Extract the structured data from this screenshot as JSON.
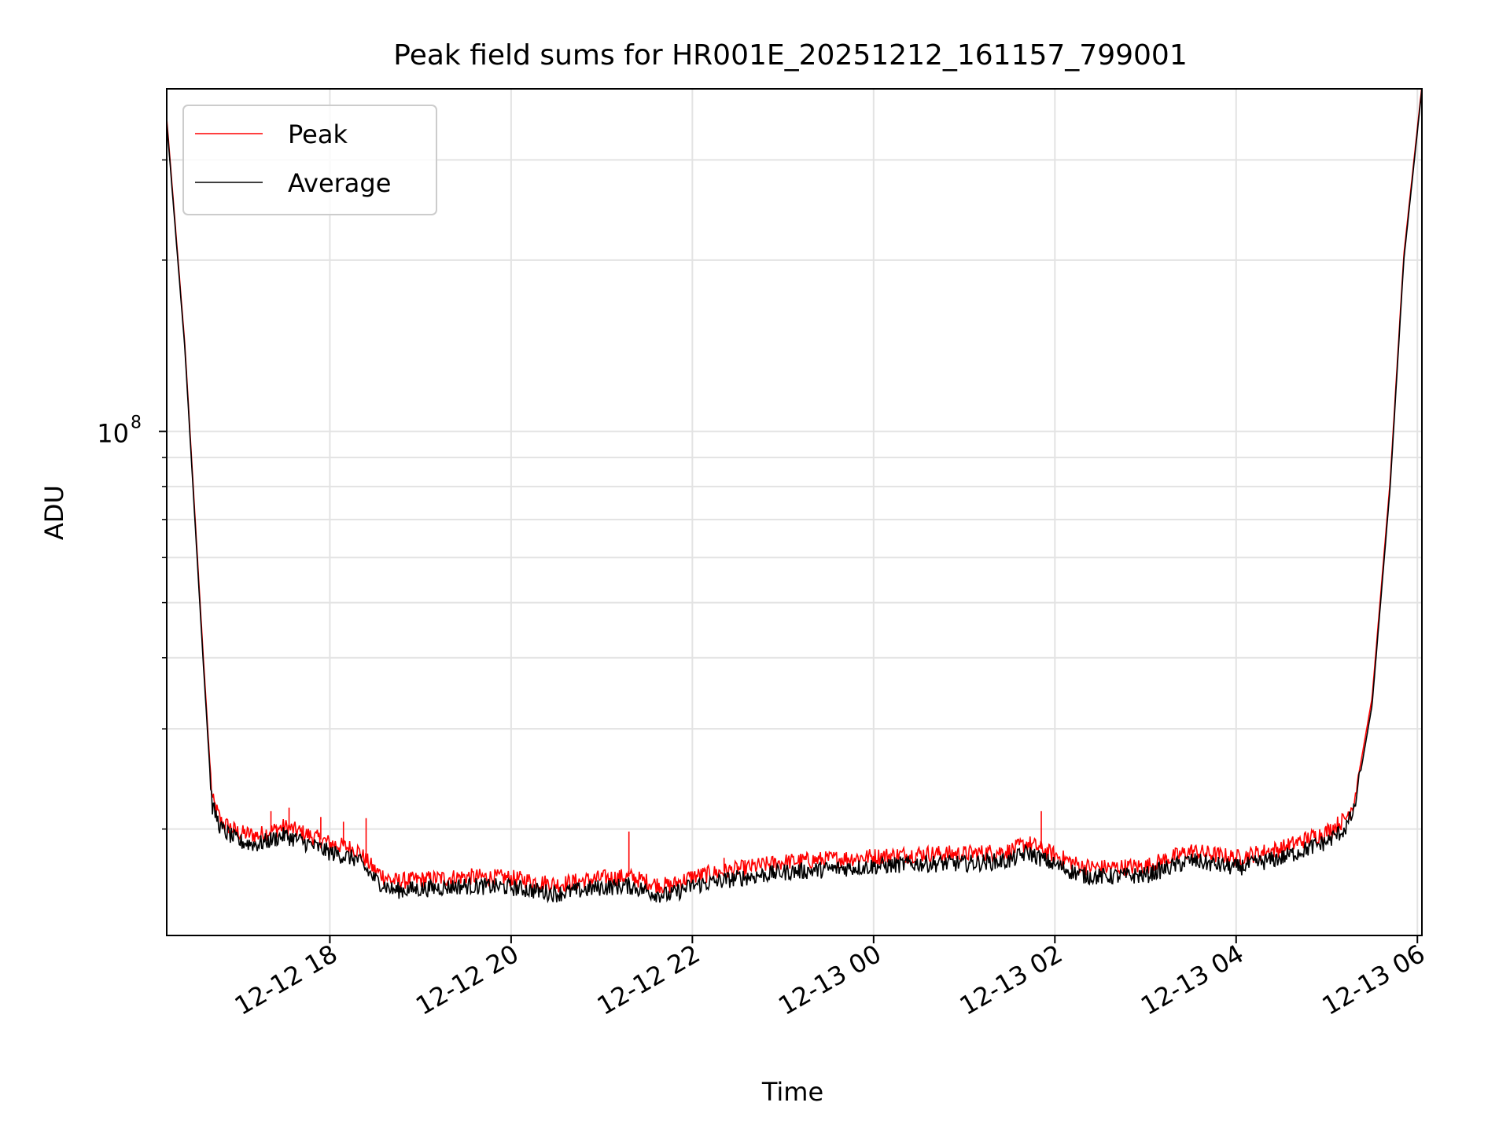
{
  "chart_data": {
    "type": "line",
    "title": "Peak field sums for HR001E_20251212_161157_799001",
    "xlabel": "Time",
    "ylabel": "ADU",
    "yscale": "log",
    "ylim": [
      13000000,
      400000000
    ],
    "xlim_hours": [
      16.2,
      30.05
    ],
    "x_ticks": [
      {
        "label": "12-12 18",
        "hour": 18
      },
      {
        "label": "12-12 20",
        "hour": 20
      },
      {
        "label": "12-12 22",
        "hour": 22
      },
      {
        "label": "12-13 00",
        "hour": 24
      },
      {
        "label": "12-13 02",
        "hour": 26
      },
      {
        "label": "12-13 04",
        "hour": 28
      },
      {
        "label": "12-13 06",
        "hour": 30
      }
    ],
    "y_major_ticks": [
      {
        "label": "10",
        "exponent": "8",
        "value": 100000000
      }
    ],
    "y_minor_ticks": [
      20000000,
      30000000,
      40000000,
      50000000,
      60000000,
      70000000,
      80000000,
      90000000,
      200000000,
      300000000
    ],
    "grid": true,
    "legend": {
      "position": "top-left",
      "entries": [
        {
          "name": "Peak",
          "color": "#ff0000"
        },
        {
          "name": "Average",
          "color": "#000000"
        }
      ]
    },
    "series": [
      {
        "name": "Average",
        "color": "#000000",
        "x_hours": [
          16.2,
          16.4,
          16.6,
          16.7,
          16.8,
          17.0,
          17.2,
          17.5,
          17.7,
          18.0,
          18.3,
          18.5,
          18.7,
          19.0,
          19.5,
          20.0,
          20.5,
          21.0,
          21.3,
          21.6,
          21.75,
          22.0,
          22.5,
          23.0,
          23.5,
          24.0,
          24.5,
          25.0,
          25.5,
          25.7,
          26.0,
          26.3,
          26.5,
          27.0,
          27.5,
          28.0,
          28.5,
          29.0,
          29.2,
          29.3,
          29.5,
          29.7,
          29.85,
          30.05
        ],
        "values": [
          350000000,
          140000000,
          40000000,
          22000000,
          20000000,
          19000000,
          18800000,
          19500000,
          19000000,
          18200000,
          17700000,
          16300000,
          15600000,
          15700000,
          15900000,
          15800000,
          15400000,
          15800000,
          15900000,
          15400000,
          15300000,
          15900000,
          16400000,
          16800000,
          17000000,
          17200000,
          17400000,
          17400000,
          17600000,
          18200000,
          17300000,
          16600000,
          16500000,
          16600000,
          17600000,
          17100000,
          17800000,
          19000000,
          20000000,
          21500000,
          33000000,
          80000000,
          200000000,
          400000000
        ]
      },
      {
        "name": "Peak",
        "color": "#ff0000",
        "x_hours": [
          16.2,
          16.4,
          16.6,
          16.7,
          16.8,
          17.0,
          17.2,
          17.5,
          17.7,
          18.0,
          18.3,
          18.5,
          18.7,
          19.0,
          19.5,
          20.0,
          20.5,
          21.0,
          21.3,
          21.6,
          21.75,
          22.0,
          22.5,
          23.0,
          23.5,
          24.0,
          24.5,
          25.0,
          25.5,
          25.7,
          26.0,
          26.3,
          26.5,
          27.0,
          27.5,
          28.0,
          28.5,
          29.0,
          29.2,
          29.3,
          29.5,
          29.7,
          29.85,
          30.05
        ],
        "values": [
          355000000,
          142000000,
          41000000,
          22600000,
          20600000,
          19700000,
          19500000,
          20200000,
          19700000,
          18900000,
          18400000,
          16900000,
          16200000,
          16300000,
          16500000,
          16400000,
          16000000,
          16400000,
          16500000,
          16000000,
          15900000,
          16500000,
          17000000,
          17500000,
          17700000,
          17900000,
          18100000,
          18100000,
          18300000,
          18900000,
          18000000,
          17200000,
          17100000,
          17200000,
          18300000,
          17800000,
          18500000,
          19800000,
          20800000,
          22300000,
          34000000,
          82000000,
          204000000,
          405000000
        ],
        "spikes": [
          {
            "hour": 17.35,
            "value": 21500000
          },
          {
            "hour": 17.55,
            "value": 21800000
          },
          {
            "hour": 17.9,
            "value": 21000000
          },
          {
            "hour": 18.15,
            "value": 20600000
          },
          {
            "hour": 18.4,
            "value": 20900000
          },
          {
            "hour": 21.3,
            "value": 19800000
          },
          {
            "hour": 22.35,
            "value": 17800000
          },
          {
            "hour": 25.85,
            "value": 21500000
          }
        ]
      }
    ]
  }
}
